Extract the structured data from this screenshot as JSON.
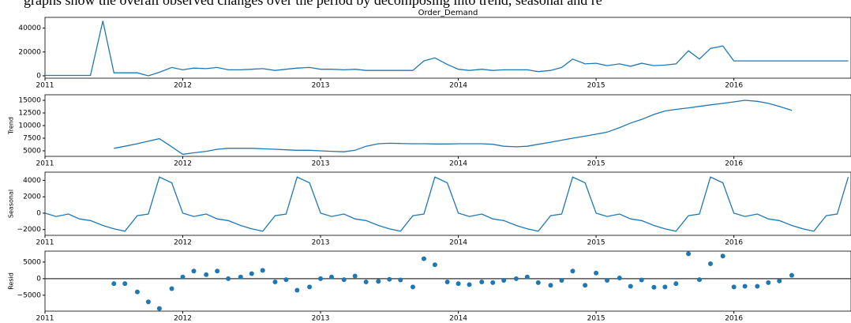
{
  "caption": "graphs show the overall observed changes over the period by decomposing into trend, seasonal and re",
  "chart_data": [
    {
      "type": "line",
      "title": "Order_Demand",
      "color": "#1f77b4",
      "x": [
        2011,
        2011.08,
        2011.17,
        2011.25,
        2011.33,
        2011.42,
        2011.5,
        2011.58,
        2011.67,
        2011.75,
        2011.83,
        2011.92,
        2012,
        2012.08,
        2012.17,
        2012.25,
        2012.33,
        2012.42,
        2012.5,
        2012.58,
        2012.67,
        2012.75,
        2012.83,
        2012.92,
        2013,
        2013.08,
        2013.17,
        2013.25,
        2013.33,
        2013.42,
        2013.5,
        2013.58,
        2013.67,
        2013.75,
        2013.83,
        2013.92,
        2014,
        2014.08,
        2014.17,
        2014.25,
        2014.33,
        2014.42,
        2014.5,
        2014.58,
        2014.67,
        2014.75,
        2014.83,
        2014.92,
        2015,
        2015.08,
        2015.17,
        2015.25,
        2015.33,
        2015.42,
        2015.5,
        2015.58,
        2015.67,
        2015.75,
        2015.83,
        2015.92,
        2016,
        2016.08,
        2016.17,
        2016.25,
        2016.33,
        2016.42,
        2016.5,
        2016.58,
        2016.67,
        2016.75,
        2016.83
      ],
      "values": [
        300,
        300,
        300,
        300,
        300,
        46000,
        2500,
        2500,
        2500,
        0,
        3000,
        7000,
        5000,
        6500,
        6000,
        7000,
        5000,
        5000,
        5500,
        6000,
        4500,
        5500,
        6500,
        7000,
        5500,
        5500,
        5000,
        5500,
        4500,
        4500,
        4500,
        4500,
        4500,
        12500,
        15000,
        9500,
        5500,
        4500,
        5500,
        4500,
        5000,
        5000,
        5000,
        3500,
        4500,
        7000,
        14000,
        10000,
        10500,
        8500,
        10000,
        8000,
        10500,
        8500,
        9000,
        10000,
        21000,
        14000,
        23000,
        25000,
        12500,
        12500,
        12500,
        12500,
        12500,
        12500,
        12500,
        12500,
        12500,
        12500,
        12500
      ],
      "xlim": [
        2011,
        2016.85
      ],
      "xticks": [
        2011,
        2012,
        2013,
        2014,
        2015,
        2016
      ],
      "ylim": [
        -2000,
        49000
      ],
      "yticks": [
        0,
        20000,
        40000
      ]
    },
    {
      "type": "line",
      "ylabel": "Trend",
      "color": "#1f77b4",
      "x": [
        2011,
        2011.08,
        2011.17,
        2011.25,
        2011.33,
        2011.42,
        2011.5,
        2011.58,
        2011.67,
        2011.75,
        2011.83,
        2011.92,
        2012,
        2012.08,
        2012.17,
        2012.25,
        2012.33,
        2012.42,
        2012.5,
        2012.58,
        2012.67,
        2012.75,
        2012.83,
        2012.92,
        2013,
        2013.08,
        2013.17,
        2013.25,
        2013.33,
        2013.42,
        2013.5,
        2013.58,
        2013.67,
        2013.75,
        2013.83,
        2013.92,
        2014,
        2014.08,
        2014.17,
        2014.25,
        2014.33,
        2014.42,
        2014.5,
        2014.58,
        2014.67,
        2014.75,
        2014.83,
        2014.92,
        2015,
        2015.08,
        2015.17,
        2015.25,
        2015.33,
        2015.42,
        2015.5,
        2015.58,
        2015.67,
        2015.75,
        2015.83,
        2015.92,
        2016,
        2016.08,
        2016.17,
        2016.25,
        2016.33,
        2016.42,
        2016.5,
        2016.58,
        2016.67,
        2016.75,
        2016.83
      ],
      "values": [
        null,
        null,
        null,
        null,
        null,
        null,
        5500,
        5900,
        6400,
        6900,
        7400,
        5800,
        4300,
        4600,
        4900,
        5300,
        5500,
        5500,
        5500,
        5400,
        5300,
        5200,
        5100,
        5100,
        5000,
        4900,
        4800,
        5100,
        5900,
        6400,
        6500,
        6450,
        6400,
        6400,
        6350,
        6350,
        6400,
        6400,
        6400,
        6300,
        5900,
        5800,
        5900,
        6300,
        6700,
        7100,
        7500,
        7900,
        8300,
        8700,
        9600,
        10500,
        11200,
        12200,
        12900,
        13200,
        13500,
        13800,
        14100,
        14400,
        14700,
        15000,
        14800,
        14400,
        13800,
        13000,
        null,
        null,
        null,
        null,
        null
      ],
      "xlim": [
        2011,
        2016.85
      ],
      "xticks": [
        2011,
        2012,
        2013,
        2014,
        2015,
        2016
      ],
      "ylim": [
        3900,
        16100
      ],
      "yticks": [
        5000,
        7500,
        10000,
        12500,
        15000
      ]
    },
    {
      "type": "line",
      "ylabel": "Seasonal",
      "color": "#1f77b4",
      "x": [
        2011,
        2011.08,
        2011.17,
        2011.25,
        2011.33,
        2011.42,
        2011.5,
        2011.58,
        2011.67,
        2011.75,
        2011.83,
        2011.92,
        2012,
        2012.08,
        2012.17,
        2012.25,
        2012.33,
        2012.42,
        2012.5,
        2012.58,
        2012.67,
        2012.75,
        2012.83,
        2012.92,
        2013,
        2013.08,
        2013.17,
        2013.25,
        2013.33,
        2013.42,
        2013.5,
        2013.58,
        2013.67,
        2013.75,
        2013.83,
        2013.92,
        2014,
        2014.08,
        2014.17,
        2014.25,
        2014.33,
        2014.42,
        2014.5,
        2014.58,
        2014.67,
        2014.75,
        2014.83,
        2014.92,
        2015,
        2015.08,
        2015.17,
        2015.25,
        2015.33,
        2015.42,
        2015.5,
        2015.58,
        2015.67,
        2015.75,
        2015.83,
        2015.92,
        2016,
        2016.08,
        2016.17,
        2016.25,
        2016.33,
        2016.42,
        2016.5,
        2016.58,
        2016.67,
        2016.75,
        2016.83
      ],
      "values": [
        0,
        -400,
        -100,
        -700,
        -900,
        -1500,
        -1900,
        -2200,
        -300,
        -100,
        4400,
        3700,
        0,
        -400,
        -100,
        -700,
        -900,
        -1500,
        -1900,
        -2200,
        -300,
        -100,
        4400,
        3700,
        0,
        -400,
        -100,
        -700,
        -900,
        -1500,
        -1900,
        -2200,
        -300,
        -100,
        4400,
        3700,
        0,
        -400,
        -100,
        -700,
        -900,
        -1500,
        -1900,
        -2200,
        -300,
        -100,
        4400,
        3700,
        0,
        -400,
        -100,
        -700,
        -900,
        -1500,
        -1900,
        -2200,
        -300,
        -100,
        4400,
        3700,
        0,
        -400,
        -100,
        -700,
        -900,
        -1500,
        -1900,
        -2200,
        -300,
        -100,
        4400
      ],
      "xlim": [
        2011,
        2016.85
      ],
      "xticks": [
        2011,
        2012,
        2013,
        2014,
        2015,
        2016
      ],
      "ylim": [
        -2700,
        5000
      ],
      "yticks": [
        {
          "value": -2000,
          "label": "−2000"
        },
        0,
        2000,
        4000
      ]
    },
    {
      "type": "scatter",
      "ylabel": "Resid",
      "color": "#1f77b4",
      "hline": 0,
      "x": [
        2011,
        2011.08,
        2011.17,
        2011.25,
        2011.33,
        2011.42,
        2011.5,
        2011.58,
        2011.67,
        2011.75,
        2011.83,
        2011.92,
        2012,
        2012.08,
        2012.17,
        2012.25,
        2012.33,
        2012.42,
        2012.5,
        2012.58,
        2012.67,
        2012.75,
        2012.83,
        2012.92,
        2013,
        2013.08,
        2013.17,
        2013.25,
        2013.33,
        2013.42,
        2013.5,
        2013.58,
        2013.67,
        2013.75,
        2013.83,
        2013.92,
        2014,
        2014.08,
        2014.17,
        2014.25,
        2014.33,
        2014.42,
        2014.5,
        2014.58,
        2014.67,
        2014.75,
        2014.83,
        2014.92,
        2015,
        2015.08,
        2015.17,
        2015.25,
        2015.33,
        2015.42,
        2015.5,
        2015.58,
        2015.67,
        2015.75,
        2015.83,
        2015.92,
        2016,
        2016.08,
        2016.17,
        2016.25,
        2016.33,
        2016.42,
        2016.5,
        2016.58,
        2016.67,
        2016.75,
        2016.83
      ],
      "values": [
        null,
        null,
        null,
        null,
        null,
        null,
        -1500,
        -1500,
        -4000,
        -7000,
        -9000,
        -3000,
        500,
        2300,
        1200,
        2300,
        0,
        500,
        1500,
        2500,
        -1000,
        -300,
        -3500,
        -2500,
        0,
        500,
        -300,
        800,
        -1000,
        -800,
        -200,
        -400,
        -2500,
        6000,
        4200,
        -1000,
        -1500,
        -1800,
        -1000,
        -1200,
        -500,
        0,
        500,
        -1200,
        -2000,
        -500,
        2300,
        -2000,
        1700,
        -500,
        200,
        -2300,
        -400,
        -2600,
        -2500,
        -1500,
        7500,
        -300,
        4500,
        6800,
        -2500,
        -2300,
        -2300,
        -1200,
        -700,
        1000,
        null,
        null,
        null,
        null,
        null
      ],
      "xlim": [
        2011,
        2016.85
      ],
      "xticks": [
        2011,
        2012,
        2013,
        2014,
        2015,
        2016
      ],
      "ylim": [
        -9800,
        8300
      ],
      "yticks": [
        {
          "value": -5000,
          "label": "−5000"
        },
        0,
        5000
      ]
    }
  ]
}
